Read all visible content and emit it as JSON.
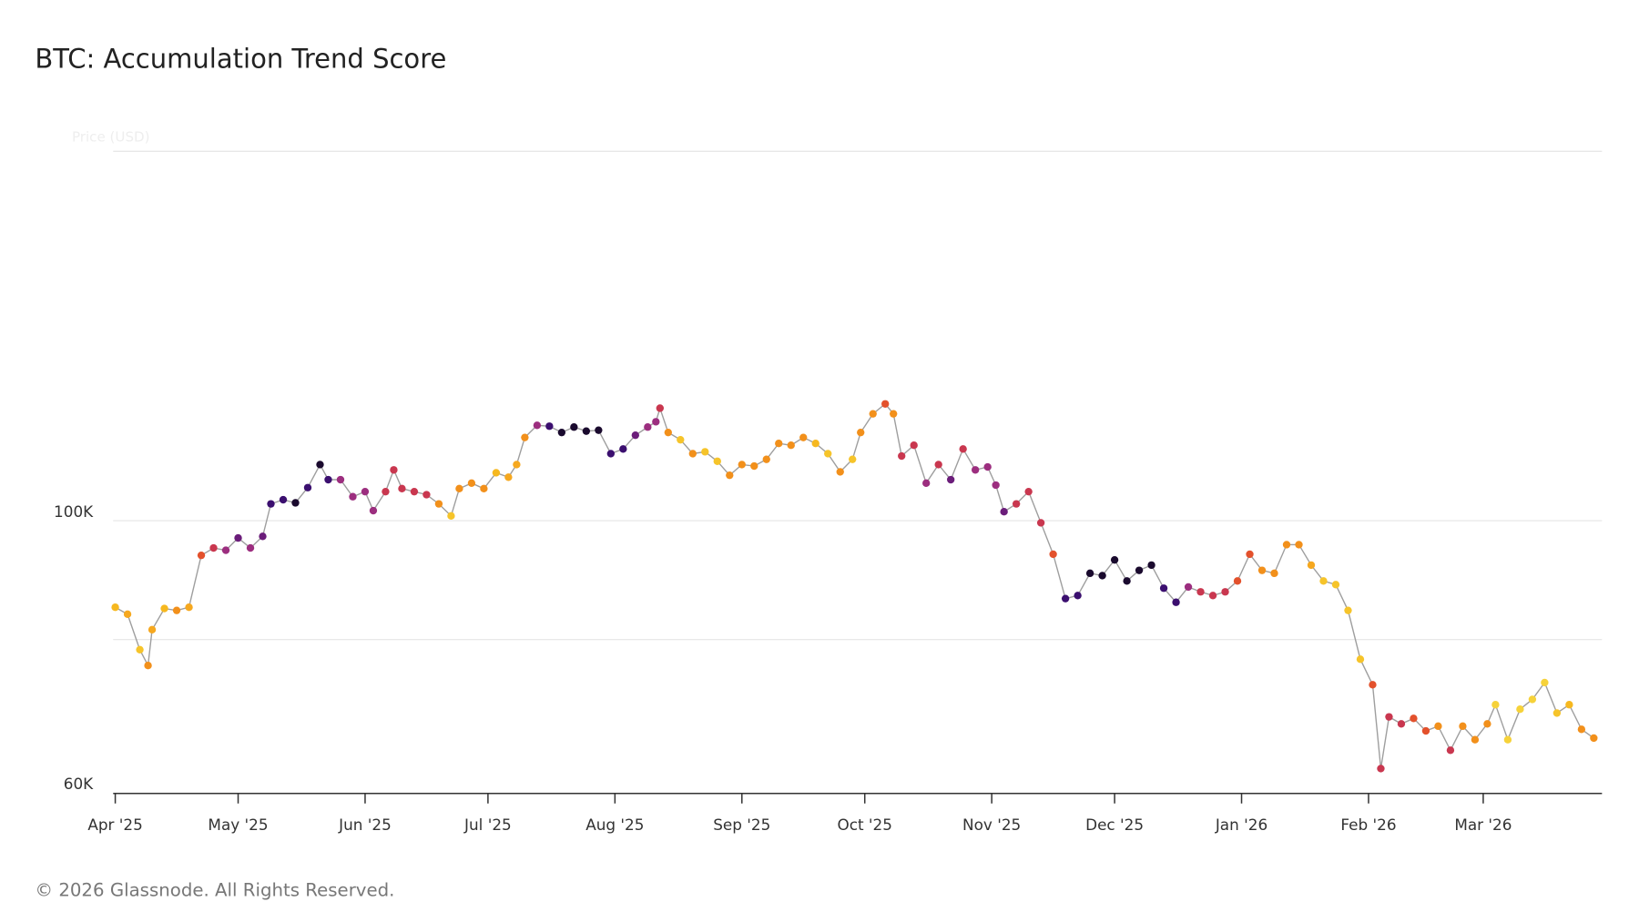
{
  "chart_data": {
    "type": "line",
    "title": "BTC: Accumulation Trend Score",
    "y_label": "Price (USD)",
    "footer": "© 2026 Glassnode. All Rights Reserved.",
    "log_y": true,
    "line_color": "#9e9e9e",
    "xlim": [
      0,
      363
    ],
    "xticks": [
      {
        "value": 0,
        "label": "Apr '25"
      },
      {
        "value": 30,
        "label": "May '25"
      },
      {
        "value": 61,
        "label": "Jun '25"
      },
      {
        "value": 91,
        "label": "Jul '25"
      },
      {
        "value": 122,
        "label": "Aug '25"
      },
      {
        "value": 153,
        "label": "Sep '25"
      },
      {
        "value": 183,
        "label": "Oct '25"
      },
      {
        "value": 214,
        "label": "Nov '25"
      },
      {
        "value": 244,
        "label": "Dec '25"
      },
      {
        "value": 275,
        "label": "Jan '26"
      },
      {
        "value": 306,
        "label": "Feb '26"
      },
      {
        "value": 334,
        "label": "Mar '26"
      }
    ],
    "ylim": [
      60000,
      200000
    ],
    "yticks": [
      {
        "value": 60000,
        "label": "60K"
      },
      {
        "value": 100000,
        "label": "100K"
      }
    ],
    "ygrid": [
      80000,
      100000,
      200000
    ],
    "x": [
      0,
      3,
      6,
      8,
      9,
      12,
      15,
      18,
      21,
      24,
      27,
      30,
      33,
      36,
      38,
      41,
      44,
      47,
      50,
      52,
      55,
      58,
      61,
      63,
      66,
      68,
      70,
      73,
      76,
      79,
      82,
      84,
      87,
      90,
      93,
      96,
      98,
      100,
      103,
      106,
      109,
      112,
      115,
      118,
      121,
      124,
      127,
      130,
      132,
      133,
      135,
      138,
      141,
      144,
      147,
      150,
      153,
      156,
      159,
      162,
      165,
      168,
      171,
      174,
      177,
      180,
      182,
      185,
      188,
      190,
      192,
      195,
      198,
      201,
      204,
      207,
      210,
      213,
      215,
      217,
      220,
      223,
      226,
      229,
      232,
      235,
      238,
      241,
      244,
      247,
      250,
      253,
      256,
      259,
      262,
      265,
      268,
      271,
      274,
      277,
      280,
      283,
      286,
      289,
      292,
      295,
      298,
      301,
      304,
      307,
      309,
      311,
      314,
      317,
      320,
      323,
      326,
      329,
      332,
      335,
      337,
      340,
      343,
      346,
      349,
      352,
      355,
      358,
      361
    ],
    "values": [
      85000,
      83900,
      78500,
      76200,
      81500,
      84800,
      84500,
      85000,
      93700,
      95000,
      94600,
      96800,
      95000,
      97100,
      103200,
      104000,
      103400,
      106400,
      111100,
      108000,
      108000,
      104600,
      105600,
      101900,
      105600,
      110000,
      106200,
      105600,
      105000,
      103200,
      100900,
      106200,
      107300,
      106200,
      109400,
      108500,
      111100,
      116900,
      119600,
      119400,
      118000,
      119200,
      118300,
      118500,
      113400,
      114400,
      117400,
      119200,
      120400,
      123500,
      118000,
      116400,
      113400,
      113800,
      111800,
      108900,
      111100,
      110800,
      112200,
      115600,
      115200,
      116900,
      115600,
      113400,
      109600,
      112200,
      118000,
      122200,
      124500,
      122200,
      112900,
      115200,
      107300,
      111100,
      108000,
      114400,
      110000,
      110600,
      106900,
      101700,
      103200,
      105600,
      99600,
      93900,
      86400,
      86900,
      90600,
      90200,
      92900,
      89300,
      91100,
      92000,
      88100,
      85800,
      88300,
      87500,
      86900,
      87500,
      89300,
      93900,
      91100,
      90600,
      95600,
      95600,
      92000,
      89300,
      88700,
      84500,
      77100,
      73500,
      62800,
      69200,
      68300,
      69000,
      67400,
      68000,
      65000,
      68000,
      66300,
      68300,
      70800,
      66300,
      70200,
      71500,
      73800,
      69700,
      70800,
      67600,
      66500
    ],
    "colors": [
      "#f6b81f",
      "#f6a81f",
      "#f6c42a",
      "#f2901b",
      "#f6a81f",
      "#f6b81f",
      "#f2901b",
      "#f6a81f",
      "#e3512c",
      "#c9374f",
      "#9c2e7f",
      "#6b1d7a",
      "#9c2e7f",
      "#6b1d7a",
      "#3b0f6f",
      "#3b0f6f",
      "#1a0a2e",
      "#3b0f6f",
      "#1a0a2e",
      "#3b0f6f",
      "#9c2e7f",
      "#9c2e7f",
      "#9c2e7f",
      "#9c2e7f",
      "#c9374f",
      "#c9374f",
      "#c9374f",
      "#c9374f",
      "#c9374f",
      "#f2901b",
      "#f6c42a",
      "#f2901b",
      "#f2901b",
      "#f2901b",
      "#f6b81f",
      "#f6a81f",
      "#f6a81f",
      "#f2901b",
      "#9c2e7f",
      "#3b0f6f",
      "#1a0a2e",
      "#1a0a2e",
      "#1a0a2e",
      "#1a0a2e",
      "#3b0f6f",
      "#3b0f6f",
      "#6b1d7a",
      "#9c2e7f",
      "#9c2e7f",
      "#c9374f",
      "#f2901b",
      "#f6c42a",
      "#f2901b",
      "#f6c42a",
      "#f6c42a",
      "#f2901b",
      "#f2901b",
      "#f2901b",
      "#f2901b",
      "#f2901b",
      "#f2901b",
      "#f2901b",
      "#f6b81f",
      "#f6c42a",
      "#f2901b",
      "#f6c42a",
      "#f2901b",
      "#f2901b",
      "#e3512c",
      "#f2901b",
      "#c9374f",
      "#c9374f",
      "#9c2e7f",
      "#c9374f",
      "#6b1d7a",
      "#c9374f",
      "#9c2e7f",
      "#9c2e7f",
      "#9c2e7f",
      "#6b1d7a",
      "#c9374f",
      "#c9374f",
      "#c9374f",
      "#e3512c",
      "#3b0f6f",
      "#3b0f6f",
      "#1a0a2e",
      "#1a0a2e",
      "#1a0a2e",
      "#1a0a2e",
      "#1a0a2e",
      "#1a0a2e",
      "#3b0f6f",
      "#3b0f6f",
      "#9c2e7f",
      "#c9374f",
      "#c9374f",
      "#c9374f",
      "#e3512c",
      "#e3512c",
      "#f2901b",
      "#f2901b",
      "#f2901b",
      "#f2901b",
      "#f6a81f",
      "#f6c42a",
      "#f6c42a",
      "#f6c42a",
      "#f6c42a",
      "#e3512c",
      "#c9374f",
      "#c9374f",
      "#c9374f",
      "#e3512c",
      "#e3512c",
      "#f2901b",
      "#c9374f",
      "#f2901b",
      "#f2901b",
      "#f2901b",
      "#f6d23a",
      "#f6d23a",
      "#f6d23a",
      "#f6d23a",
      "#f6d23a",
      "#f6c42a",
      "#f6b81f",
      "#f2901b",
      "#f2901b"
    ]
  }
}
